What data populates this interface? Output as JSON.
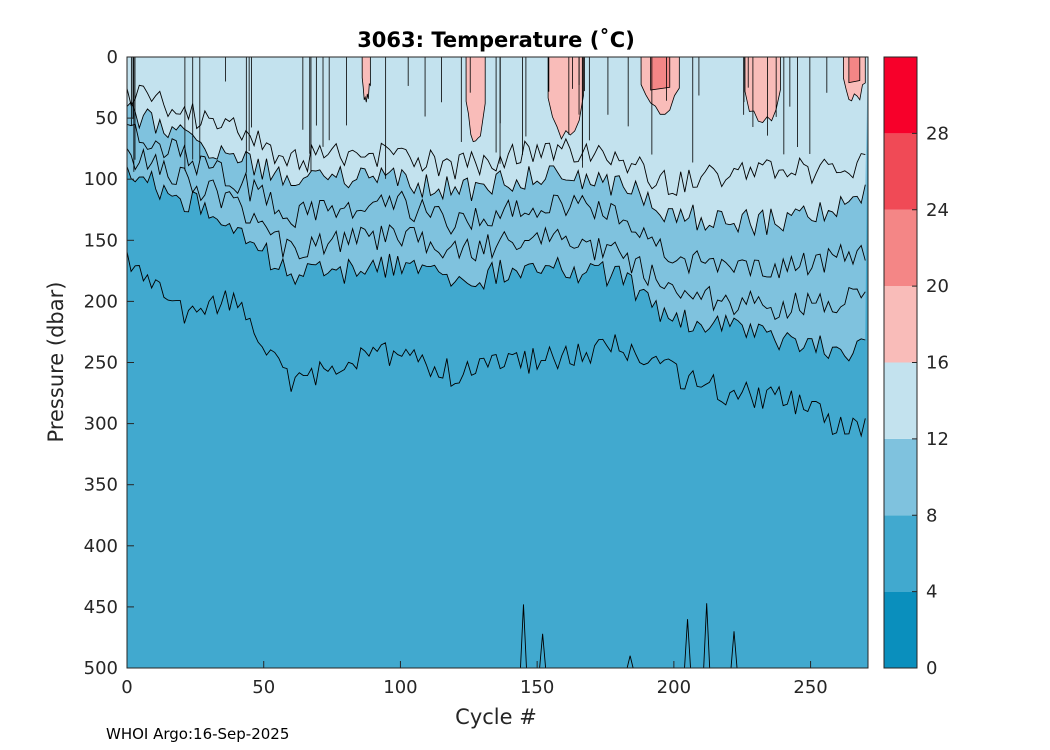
{
  "chart_data": {
    "type": "contour",
    "title": "3063:  Temperature (˚C)",
    "xlabel": "Cycle #",
    "ylabel": "Pressure (dbar)",
    "xlim": [
      0,
      271
    ],
    "ylim": [
      0,
      500
    ],
    "y_reversed": true,
    "xticks": [
      0,
      50,
      100,
      150,
      200,
      250
    ],
    "yticks": [
      0,
      50,
      100,
      150,
      200,
      250,
      300,
      350,
      400,
      450,
      500
    ],
    "colorbar": {
      "range": [
        0,
        32
      ],
      "ticks": [
        0,
        4,
        8,
        12,
        16,
        20,
        24,
        28
      ],
      "levels": [
        {
          "min": 0,
          "max": 4,
          "color": "#0a8fbd"
        },
        {
          "min": 4,
          "max": 8,
          "color": "#41a9cf"
        },
        {
          "min": 8,
          "max": 12,
          "color": "#7fc2de"
        },
        {
          "min": 12,
          "max": 16,
          "color": "#c3e2ee"
        },
        {
          "min": 16,
          "max": 20,
          "color": "#f9bcb9"
        },
        {
          "min": 20,
          "max": 24,
          "color": "#f48686"
        },
        {
          "min": 24,
          "max": 28,
          "color": "#f04a56"
        },
        {
          "min": 28,
          "max": 32,
          "color": "#f7002a"
        }
      ]
    },
    "isotherm_depths": [
      {
        "temp": 8,
        "x": [
          0,
          20,
          40,
          60,
          80,
          100,
          120,
          140,
          160,
          180,
          200,
          220,
          240,
          260,
          271
        ],
        "y": [
          165,
          210,
          200,
          270,
          250,
          240,
          260,
          250,
          245,
          235,
          260,
          275,
          280,
          300,
          305
        ]
      },
      {
        "temp": 10,
        "x": [
          0,
          20,
          40,
          60,
          80,
          100,
          120,
          140,
          160,
          180,
          200,
          220,
          240,
          260,
          271
        ],
        "y": [
          95,
          115,
          140,
          180,
          175,
          170,
          185,
          175,
          175,
          180,
          215,
          220,
          230,
          240,
          235
        ]
      },
      {
        "temp": 11,
        "x": [
          0,
          20,
          40,
          60,
          80,
          100,
          120,
          140,
          160,
          180,
          200,
          220,
          240,
          260,
          271
        ],
        "y": [
          80,
          100,
          120,
          160,
          150,
          145,
          160,
          150,
          150,
          160,
          195,
          200,
          205,
          200,
          190
        ]
      },
      {
        "temp": 12,
        "x": [
          0,
          20,
          40,
          60,
          80,
          100,
          120,
          140,
          160,
          180,
          200,
          220,
          240,
          260,
          271
        ],
        "y": [
          60,
          80,
          100,
          130,
          125,
          120,
          135,
          125,
          120,
          130,
          165,
          170,
          175,
          165,
          160
        ]
      },
      {
        "temp": 13,
        "x": [
          0,
          20,
          40,
          60,
          80,
          100,
          120,
          140,
          160,
          180,
          200,
          220,
          240,
          260,
          271
        ],
        "y": [
          45,
          65,
          80,
          105,
          100,
          100,
          110,
          100,
          100,
          105,
          130,
          135,
          135,
          120,
          115
        ]
      },
      {
        "temp": 14,
        "x": [
          0,
          20,
          40,
          60,
          80,
          100,
          120,
          140,
          160,
          180,
          200,
          220,
          240,
          260,
          271
        ],
        "y": [
          30,
          45,
          60,
          85,
          80,
          80,
          90,
          80,
          75,
          85,
          105,
          95,
          90,
          95,
          85
        ]
      }
    ],
    "warm_patches": [
      {
        "x": [
          86,
          89
        ],
        "depth": 35,
        "temp_range": "16-20"
      },
      {
        "x": [
          124,
          131
        ],
        "depth": 70,
        "temp_range": "16-20"
      },
      {
        "x": [
          154,
          167
        ],
        "depth": 65,
        "temp_range": "16-20"
      },
      {
        "x": [
          188,
          202
        ],
        "depth": 45,
        "temp_range": "16-24"
      },
      {
        "x": [
          226,
          239
        ],
        "depth": 55,
        "temp_range": "16-20"
      },
      {
        "x": [
          262,
          270
        ],
        "depth": 35,
        "temp_range": "16-24"
      }
    ],
    "deep_spikes_6C": [
      {
        "x": 145,
        "top": 448
      },
      {
        "x": 152,
        "top": 472
      },
      {
        "x": 184,
        "top": 490
      },
      {
        "x": 205,
        "top": 460
      },
      {
        "x": 212,
        "top": 447
      },
      {
        "x": 222,
        "top": 470
      }
    ]
  },
  "footer": {
    "text": "WHOI Argo:16-Sep-2025"
  }
}
